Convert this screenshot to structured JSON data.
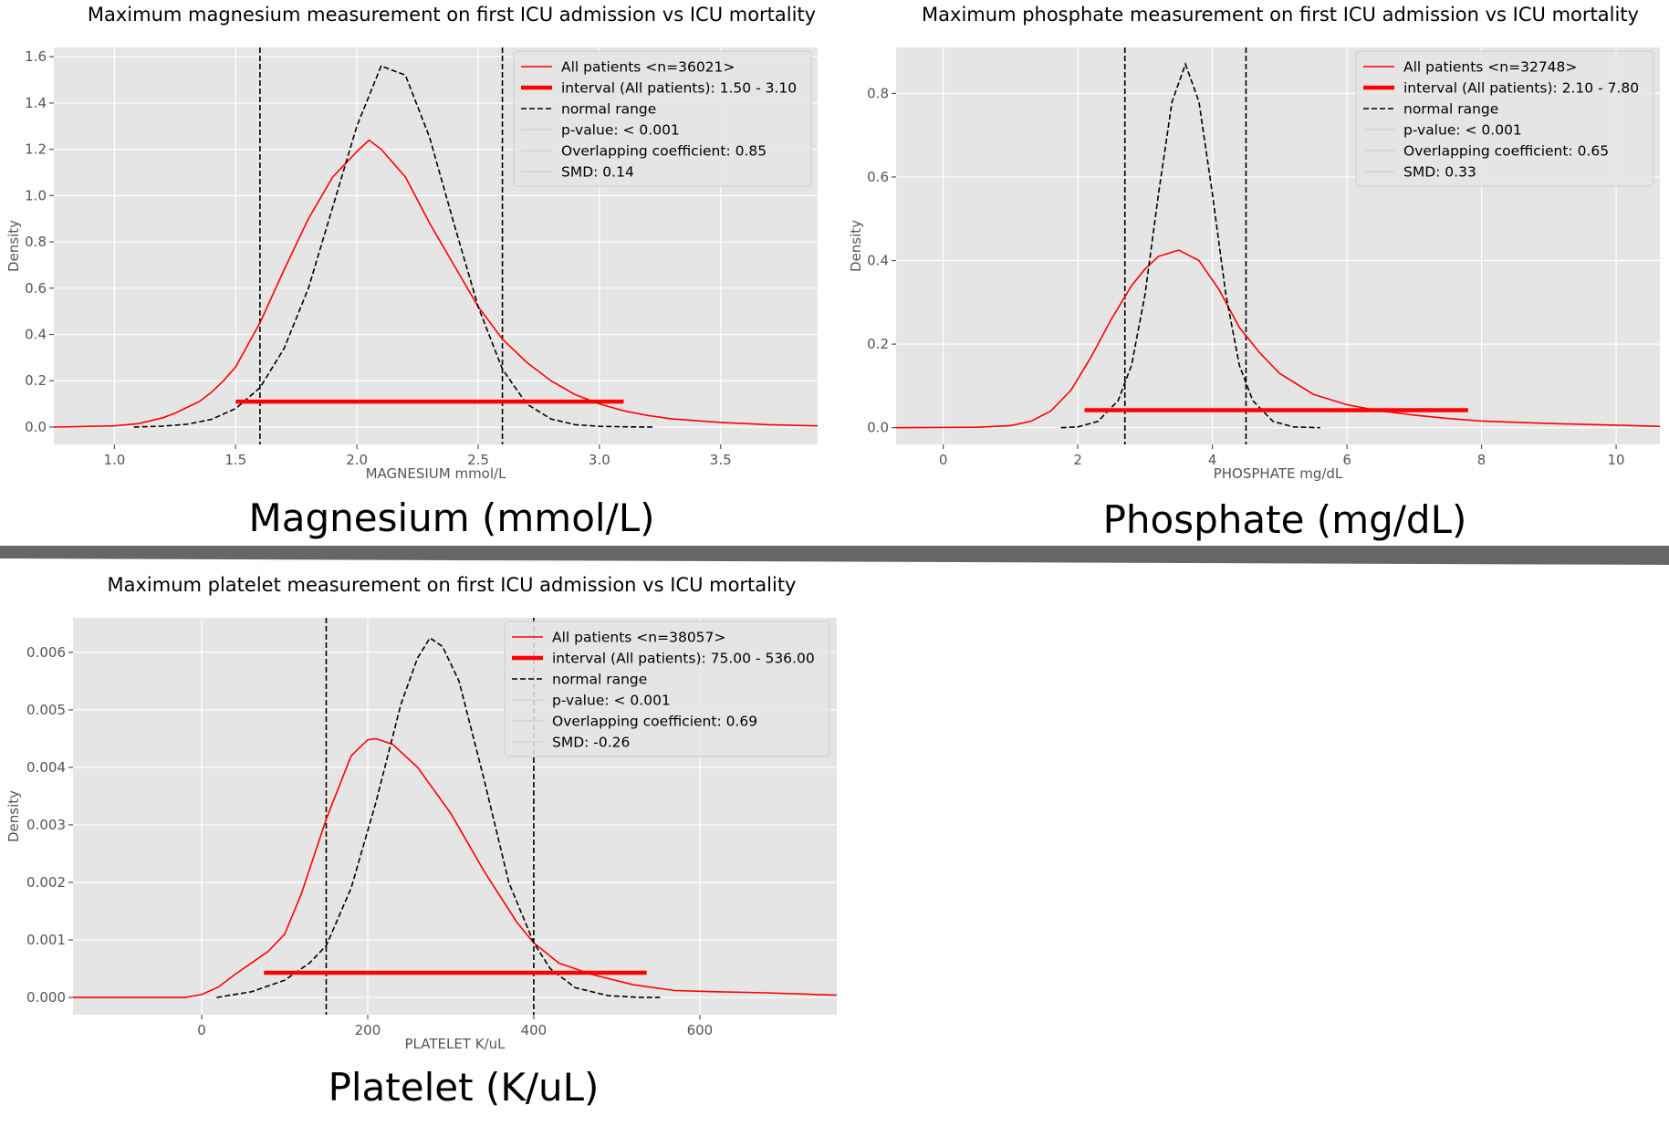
{
  "figure": {
    "separator_color": "#666666",
    "colors": {
      "kde": "#ff0000",
      "interval": "#ff0000",
      "normal": "#000000",
      "axes_bg": "#e5e5e5",
      "grid": "#ffffff",
      "tick_text": "#555555"
    }
  },
  "chart_data": [
    {
      "type": "line",
      "title": "Maximum magnesium measurement on first ICU admission vs ICU mortality",
      "xlabel": "MAGNESIUM mmol/L",
      "ylabel": "Density",
      "caption": "Magnesium (mmol/L)",
      "xlim": [
        0.75,
        3.9
      ],
      "ylim": [
        -0.075,
        1.64
      ],
      "xticks": [
        1.0,
        1.5,
        2.0,
        2.5,
        3.0,
        3.5
      ],
      "xtick_labels": [
        "1.0",
        "1.5",
        "2.0",
        "2.5",
        "3.0",
        "3.5"
      ],
      "yticks": [
        0.0,
        0.2,
        0.4,
        0.6,
        0.8,
        1.0,
        1.2,
        1.4,
        1.6
      ],
      "ytick_labels": [
        "0.0",
        "0.2",
        "0.4",
        "0.6",
        "0.8",
        "1.0",
        "1.2",
        "1.4",
        "1.6"
      ],
      "normal_range": [
        1.6,
        2.6
      ],
      "interval": {
        "range": [
          1.5,
          3.1
        ],
        "y": 0.11
      },
      "legend": [
        "All patients <n=36021>",
        "interval (All patients): 1.50 - 3.10",
        "normal range",
        "p-value: < 0.001",
        "Overlapping coefficient: 0.85",
        "SMD: 0.14"
      ],
      "series": [
        {
          "name": "All patients",
          "style": "kde",
          "x": [
            0.75,
            1.0,
            1.1,
            1.2,
            1.25,
            1.3,
            1.35,
            1.4,
            1.45,
            1.5,
            1.6,
            1.7,
            1.8,
            1.9,
            2.0,
            2.05,
            2.1,
            2.2,
            2.3,
            2.4,
            2.5,
            2.6,
            2.7,
            2.8,
            2.9,
            3.0,
            3.1,
            3.2,
            3.3,
            3.5,
            3.7,
            3.9
          ],
          "y": [
            0.0,
            0.005,
            0.015,
            0.04,
            0.06,
            0.085,
            0.11,
            0.15,
            0.2,
            0.26,
            0.45,
            0.68,
            0.9,
            1.08,
            1.19,
            1.24,
            1.2,
            1.08,
            0.88,
            0.7,
            0.52,
            0.38,
            0.28,
            0.2,
            0.14,
            0.1,
            0.07,
            0.05,
            0.035,
            0.02,
            0.01,
            0.005
          ]
        },
        {
          "name": "normal range",
          "style": "normal",
          "x": [
            1.08,
            1.2,
            1.3,
            1.4,
            1.5,
            1.6,
            1.7,
            1.8,
            1.9,
            2.0,
            2.1,
            2.2,
            2.3,
            2.4,
            2.5,
            2.6,
            2.7,
            2.8,
            2.9,
            3.0,
            3.1,
            3.22
          ],
          "y": [
            0.0,
            0.004,
            0.012,
            0.033,
            0.08,
            0.17,
            0.34,
            0.6,
            0.95,
            1.3,
            1.56,
            1.52,
            1.25,
            0.88,
            0.52,
            0.25,
            0.1,
            0.035,
            0.01,
            0.003,
            0.001,
            0.0
          ]
        }
      ]
    },
    {
      "type": "line",
      "title": "Maximum phosphate measurement on first ICU admission vs ICU mortality",
      "xlabel": "PHOSPHATE mg/dL",
      "ylabel": "Density",
      "caption": "Phosphate (mg/dL)",
      "xlim": [
        -0.7,
        10.65
      ],
      "ylim": [
        -0.04,
        0.91
      ],
      "xticks": [
        0,
        2,
        4,
        6,
        8,
        10
      ],
      "xtick_labels": [
        "0",
        "2",
        "4",
        "6",
        "8",
        "10"
      ],
      "yticks": [
        0.0,
        0.2,
        0.4,
        0.6,
        0.8
      ],
      "ytick_labels": [
        "0.0",
        "0.2",
        "0.4",
        "0.6",
        "0.8"
      ],
      "normal_range": [
        2.7,
        4.5
      ],
      "interval": {
        "range": [
          2.1,
          7.8
        ],
        "y": 0.042
      },
      "legend": [
        "All patients <n=32748>",
        "interval (All patients): 2.10 - 7.80",
        "normal range",
        "p-value: < 0.001",
        "Overlapping coefficient: 0.65",
        "SMD: 0.33"
      ],
      "series": [
        {
          "name": "All patients",
          "style": "kde",
          "x": [
            -0.7,
            0.5,
            1.0,
            1.3,
            1.6,
            1.9,
            2.2,
            2.5,
            2.8,
            3.0,
            3.2,
            3.5,
            3.8,
            4.1,
            4.4,
            4.7,
            5.0,
            5.5,
            6.0,
            6.5,
            7.0,
            7.5,
            8.0,
            9.0,
            10.0,
            10.65
          ],
          "y": [
            0.0,
            0.001,
            0.005,
            0.015,
            0.04,
            0.09,
            0.17,
            0.26,
            0.34,
            0.38,
            0.41,
            0.425,
            0.4,
            0.33,
            0.24,
            0.18,
            0.13,
            0.08,
            0.055,
            0.04,
            0.03,
            0.022,
            0.016,
            0.01,
            0.006,
            0.003
          ]
        },
        {
          "name": "normal range",
          "style": "normal",
          "x": [
            1.75,
            2.0,
            2.3,
            2.6,
            2.8,
            3.0,
            3.2,
            3.4,
            3.6,
            3.8,
            4.0,
            4.2,
            4.4,
            4.6,
            4.9,
            5.2,
            5.6
          ],
          "y": [
            0.0,
            0.002,
            0.015,
            0.065,
            0.15,
            0.32,
            0.56,
            0.78,
            0.87,
            0.78,
            0.56,
            0.32,
            0.15,
            0.065,
            0.015,
            0.002,
            0.0
          ]
        }
      ]
    },
    {
      "type": "line",
      "title": "Maximum platelet measurement on first ICU admission vs ICU mortality",
      "xlabel": "PLATELET K/uL",
      "ylabel": "Density",
      "caption": "Platelet (K/uL)",
      "xlim": [
        -155,
        765
      ],
      "ylim": [
        -0.0003,
        0.0066
      ],
      "xticks": [
        0,
        200,
        400,
        600
      ],
      "xtick_labels": [
        "0",
        "200",
        "400",
        "600"
      ],
      "yticks": [
        0.0,
        0.001,
        0.002,
        0.003,
        0.004,
        0.005,
        0.006
      ],
      "ytick_labels": [
        "0.000",
        "0.001",
        "0.002",
        "0.003",
        "0.004",
        "0.005",
        "0.006"
      ],
      "normal_range": [
        150,
        400
      ],
      "interval": {
        "range": [
          75,
          536
        ],
        "y": 0.00043
      },
      "legend": [
        "All patients <n=38057>",
        "interval (All patients): 75.00 - 536.00",
        "normal range",
        "p-value: < 0.001",
        "Overlapping coefficient: 0.69",
        "SMD: -0.26"
      ],
      "series": [
        {
          "name": "All patients",
          "style": "kde",
          "x": [
            -155,
            -20,
            0,
            20,
            40,
            60,
            80,
            100,
            120,
            150,
            180,
            200,
            210,
            230,
            260,
            300,
            340,
            380,
            400,
            430,
            470,
            520,
            570,
            620,
            680,
            765
          ],
          "y": [
            0.0,
            0.0,
            5e-05,
            0.00018,
            0.0004,
            0.0006,
            0.0008,
            0.0011,
            0.0018,
            0.0031,
            0.0042,
            0.00448,
            0.0045,
            0.0044,
            0.004,
            0.0032,
            0.0022,
            0.0013,
            0.00095,
            0.0006,
            0.0004,
            0.00022,
            0.00012,
            0.0001,
            8e-05,
            4e-05
          ]
        },
        {
          "name": "normal range",
          "style": "normal",
          "x": [
            18,
            60,
            100,
            130,
            150,
            180,
            210,
            240,
            260,
            275,
            290,
            310,
            340,
            370,
            400,
            420,
            450,
            490,
            530,
            552
          ],
          "y": [
            0.0,
            0.0001,
            0.0003,
            0.0006,
            0.0009,
            0.0019,
            0.0034,
            0.0051,
            0.0059,
            0.00625,
            0.0061,
            0.0055,
            0.0038,
            0.002,
            0.00095,
            0.0005,
            0.00017,
            3e-05,
            0.0,
            0.0
          ]
        }
      ]
    }
  ]
}
